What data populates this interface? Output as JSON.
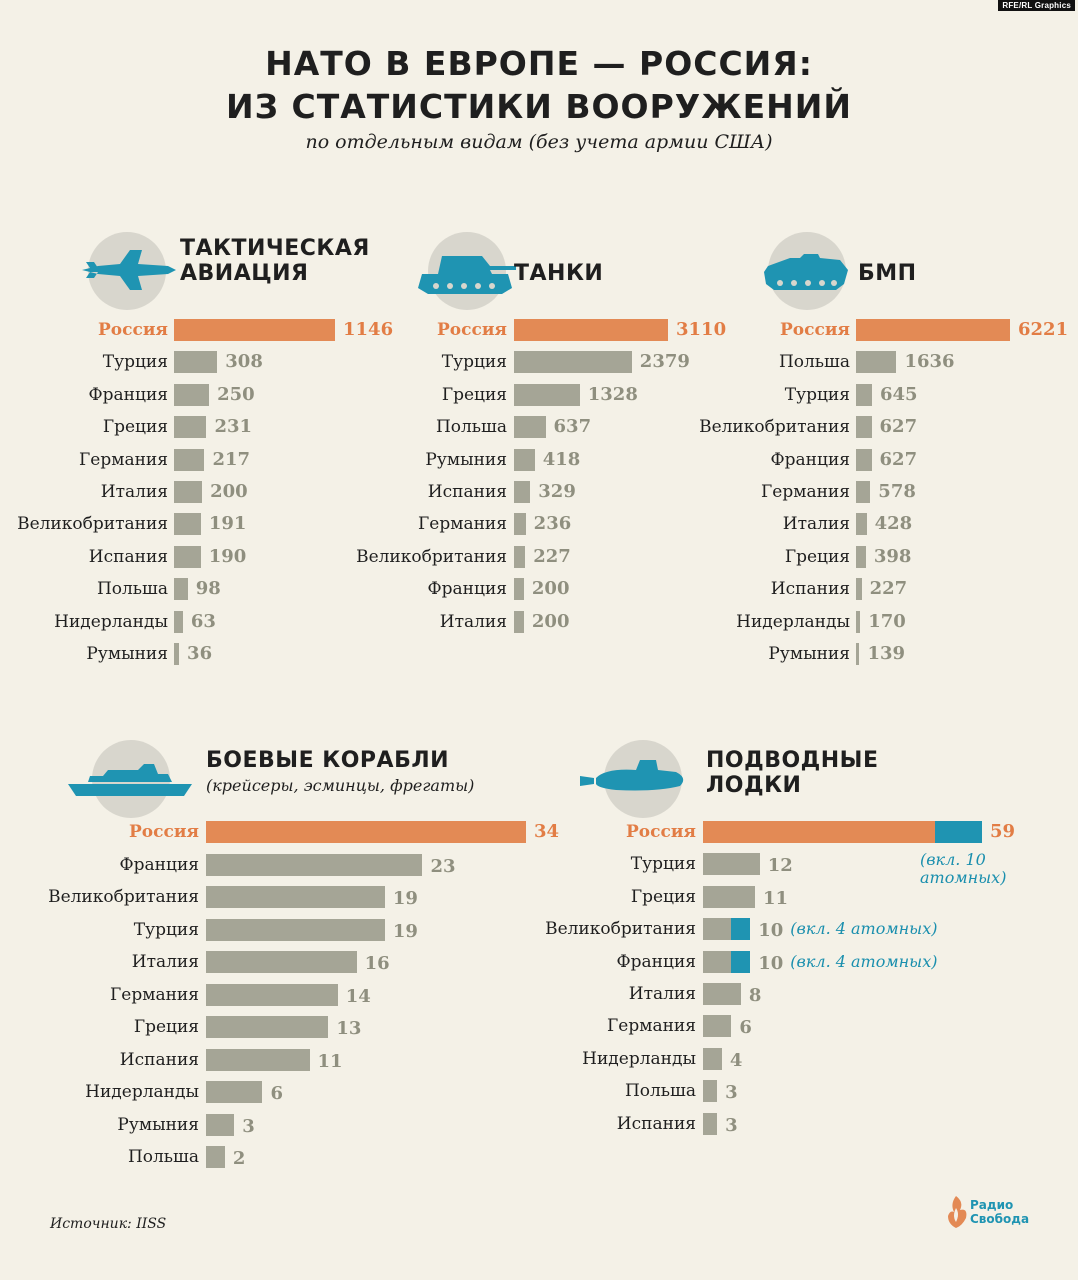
{
  "tag": "RFE/RL Graphics",
  "title_line1": "НАТО В ЕВРОПЕ — РОССИЯ:",
  "title_line2": "ИЗ СТАТИСТИКИ ВООРУЖЕНИЙ",
  "subtitle": "по отдельным видам (без учета армии США)",
  "source": "Источник: IISS",
  "brand": {
    "line1": "Радио",
    "line2": "Свобода"
  },
  "colors": {
    "russia": "#e38a55",
    "others": "#a5a596",
    "nuclear": "#1f94b2",
    "background": "#f4f1e7"
  },
  "chart_data": [
    {
      "type": "bar",
      "icon": "fighter-jet-icon",
      "title_line1": "ТАКТИЧЕСКАЯ",
      "title_line2": "АВИАЦИЯ",
      "note": "",
      "categories": [
        "Россия",
        "Турция",
        "Франция",
        "Греция",
        "Германия",
        "Италия",
        "Великобритания",
        "Испания",
        "Польша",
        "Нидерланды",
        "Румыния"
      ],
      "values": [
        1146,
        308,
        250,
        231,
        217,
        200,
        191,
        190,
        98,
        63,
        36
      ],
      "value_labels": [
        "1146",
        "308",
        "250",
        "231",
        "217",
        "200",
        "191",
        "190",
        "98",
        "63",
        "36"
      ]
    },
    {
      "type": "bar",
      "icon": "tank-icon",
      "title_line1": "ТАНКИ",
      "title_line2": "",
      "note": "",
      "categories": [
        "Россия",
        "Турция",
        "Греция",
        "Польша",
        "Румыния",
        "Испания",
        "Германия",
        "Великобритания",
        "Франция",
        "Италия"
      ],
      "values": [
        3110,
        2379,
        1328,
        637,
        418,
        329,
        236,
        227,
        200,
        200
      ],
      "value_labels": [
        "3110",
        "2379",
        "1328",
        "637",
        "418",
        "329",
        "236",
        "227",
        "200",
        "200"
      ]
    },
    {
      "type": "bar",
      "icon": "ifv-icon",
      "title_line1": "БМП",
      "title_line2": "",
      "note": "",
      "categories": [
        "Россия",
        "Польша",
        "Турция",
        "Великобритания",
        "Франция",
        "Германия",
        "Италия",
        "Греция",
        "Испания",
        "Нидерланды",
        "Румыния"
      ],
      "values": [
        6221,
        1636,
        645,
        627,
        627,
        578,
        428,
        398,
        227,
        170,
        139
      ],
      "value_labels": [
        "6221",
        "1636",
        "645",
        "627",
        "627",
        "578",
        "428",
        "398",
        "227",
        "170",
        "139"
      ]
    },
    {
      "type": "bar",
      "icon": "warship-icon",
      "title_line1": "БОЕВЫЕ КОРАБЛИ",
      "title_line2": "",
      "note": "(крейсеры, эсминцы, фрегаты)",
      "categories": [
        "Россия",
        "Франция",
        "Великобритания",
        "Турция",
        "Италия",
        "Германия",
        "Греция",
        "Испания",
        "Нидерланды",
        "Румыния",
        "Польша"
      ],
      "values": [
        34,
        23,
        19,
        19,
        16,
        14,
        13,
        11,
        6,
        3,
        2
      ],
      "value_labels": [
        "34",
        "23",
        "19",
        "19",
        "16",
        "14",
        "13",
        "11",
        "6",
        "3",
        "2"
      ]
    },
    {
      "type": "bar",
      "icon": "submarine-icon",
      "title_line1": "ПОДВОДНЫЕ",
      "title_line2": "ЛОДКИ",
      "note": "",
      "categories": [
        "Россия",
        "Турция",
        "Греция",
        "Великобритания",
        "Франция",
        "Италия",
        "Германия",
        "Нидерланды",
        "Польша",
        "Испания"
      ],
      "values": [
        59,
        12,
        11,
        10,
        10,
        8,
        6,
        4,
        3,
        3
      ],
      "nuclear": [
        10,
        0,
        0,
        4,
        4,
        0,
        0,
        0,
        0,
        0
      ],
      "value_labels": [
        "59",
        "12",
        "11",
        "10",
        "10",
        "8",
        "6",
        "4",
        "3",
        "3"
      ],
      "value_notes": [
        "(вкл. 10 атомных)",
        "",
        "",
        "(вкл. 4 атомных)",
        "(вкл. 4 атомных)",
        "",
        "",
        "",
        "",
        ""
      ]
    }
  ]
}
